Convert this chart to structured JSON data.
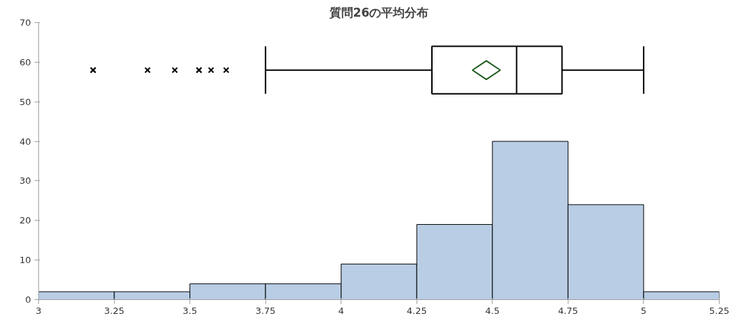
{
  "chart_data": [
    {
      "type": "box",
      "orientation": "horizontal",
      "categories": [
        null
      ],
      "color": "#000000",
      "xlim": [
        3,
        5.25
      ],
      "xticks": [
        3,
        3.25,
        3.5,
        3.75,
        4,
        4.25,
        4.5,
        4.75,
        5,
        5.25
      ],
      "tick_labels": false,
      "grid": false,
      "boxes": [
        {
          "low": 3.75,
          "q1": 4.3,
          "median": 4.58,
          "q3": 4.73,
          "high": 5.0,
          "mean": 4.48,
          "outliers": [
            3.18,
            3.18,
            3.36,
            3.45,
            3.53,
            3.53,
            3.57,
            3.62
          ]
        }
      ]
    },
    {
      "type": "histogram",
      "title": "質問26の平均分布",
      "color": "#b9cde5",
      "bins": [
        3,
        3.25,
        3.5,
        3.75,
        4,
        4.25,
        4.5,
        4.75,
        5,
        5.25
      ],
      "values": [
        2,
        2,
        4,
        4,
        9,
        19,
        40,
        24,
        2
      ],
      "xlim": [
        3,
        5.25
      ],
      "xticks": [
        3,
        3.25,
        3.5,
        3.75,
        4,
        4.25,
        4.5,
        4.75,
        5,
        5.25
      ],
      "ylim": [
        0,
        70
      ],
      "yticks": [
        0,
        10,
        20,
        30,
        40,
        50,
        60,
        70
      ],
      "grid": false
    }
  ]
}
